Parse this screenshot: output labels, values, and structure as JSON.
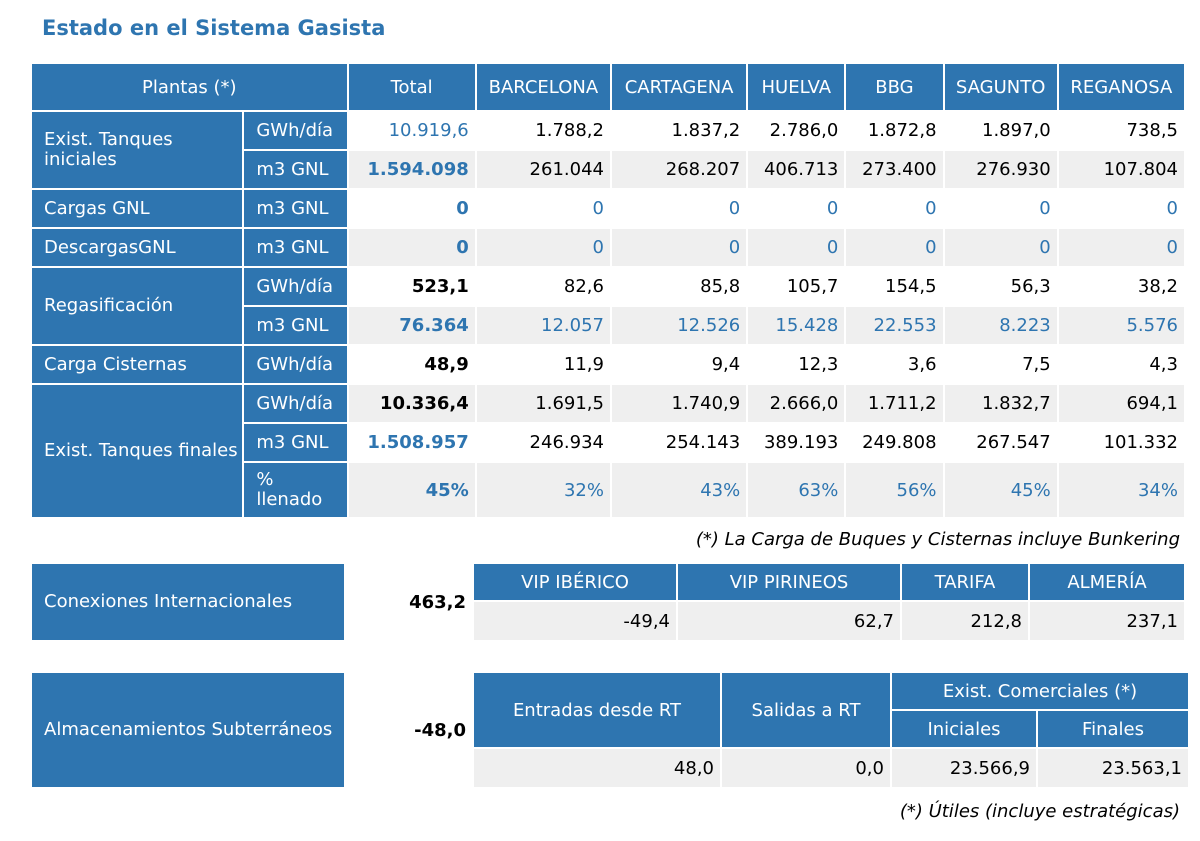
{
  "title": "Estado en el Sistema Gasista",
  "plants": {
    "header": [
      "Plantas (*)",
      "Total",
      "BARCELONA",
      "CARTAGENA",
      "HUELVA",
      "BBG",
      "SAGUNTO",
      "REGANOSA"
    ],
    "rows": [
      {
        "label": "Exist. Tanques iniciales",
        "unit": "GWh/día",
        "values": [
          "10.919,6",
          "1.788,2",
          "1.837,2",
          "2.786,0",
          "1.872,8",
          "1.897,0",
          "738,5"
        ]
      },
      {
        "unit": "m3 GNL",
        "values": [
          "1.594.098",
          "261.044",
          "268.207",
          "406.713",
          "273.400",
          "276.930",
          "107.804"
        ]
      },
      {
        "label": "Cargas GNL",
        "unit": "m3 GNL",
        "values": [
          "0",
          "0",
          "0",
          "0",
          "0",
          "0",
          "0"
        ]
      },
      {
        "label": "DescargasGNL",
        "unit": "m3 GNL",
        "values": [
          "0",
          "0",
          "0",
          "0",
          "0",
          "0",
          "0"
        ]
      },
      {
        "label": "Regasificación",
        "unit": "GWh/día",
        "values": [
          "523,1",
          "82,6",
          "85,8",
          "105,7",
          "154,5",
          "56,3",
          "38,2"
        ]
      },
      {
        "unit": "m3 GNL",
        "values": [
          "76.364",
          "12.057",
          "12.526",
          "15.428",
          "22.553",
          "8.223",
          "5.576"
        ]
      },
      {
        "label": "Carga Cisternas",
        "unit": "GWh/día",
        "values": [
          "48,9",
          "11,9",
          "9,4",
          "12,3",
          "3,6",
          "7,5",
          "4,3"
        ]
      },
      {
        "label": "Exist. Tanques finales",
        "unit": "GWh/día",
        "values": [
          "10.336,4",
          "1.691,5",
          "1.740,9",
          "2.666,0",
          "1.711,2",
          "1.832,7",
          "694,1"
        ]
      },
      {
        "unit": "m3 GNL",
        "values": [
          "1.508.957",
          "246.934",
          "254.143",
          "389.193",
          "249.808",
          "267.547",
          "101.332"
        ]
      },
      {
        "unit": "% llenado",
        "values": [
          "45%",
          "32%",
          "43%",
          "63%",
          "56%",
          "45%",
          "34%"
        ]
      }
    ],
    "note": "(*) La Carga de Buques y Cisternas incluye Bunkering"
  },
  "connections": {
    "label": "Conexiones Internacionales",
    "total": "463,2",
    "headers": [
      "VIP IBÉRICO",
      "VIP PIRINEOS",
      "TARIFA",
      "ALMERÍA"
    ],
    "values": [
      "-49,4",
      "62,7",
      "212,8",
      "237,1"
    ]
  },
  "storage": {
    "label": "Almacenamientos Subterráneos",
    "total": "-48,0",
    "headers": [
      "Entradas desde RT",
      "Salidas a RT",
      "Exist. Comerciales (*)",
      "Iniciales",
      "Finales"
    ],
    "values": [
      "48,0",
      "0,0",
      "23.566,9",
      "23.563,1"
    ],
    "note": "(*) Útiles (incluye estratégicas)"
  },
  "colors": {
    "brand": "#2e75b0",
    "shade": "#efefef"
  }
}
